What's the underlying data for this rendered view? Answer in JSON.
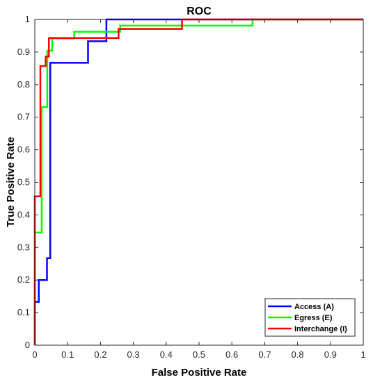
{
  "chart_data": {
    "type": "line",
    "title": "ROC",
    "xlabel": "False Positive Rate",
    "ylabel": "True Positive Rate",
    "xlim": [
      0,
      1
    ],
    "ylim": [
      0,
      1
    ],
    "xticks": [
      "0",
      "0.1",
      "0.2",
      "0.3",
      "0.4",
      "0.5",
      "0.6",
      "0.7",
      "0.8",
      "0.9",
      "1"
    ],
    "yticks": [
      "0",
      "0.1",
      "0.2",
      "0.3",
      "0.4",
      "0.5",
      "0.6",
      "0.7",
      "0.8",
      "0.9",
      "1"
    ],
    "grid": false,
    "legend_position": "bottom-right",
    "series": [
      {
        "name": "Access (A)",
        "color": "#0000ff",
        "points": [
          [
            0,
            0
          ],
          [
            0,
            0.133
          ],
          [
            0.012,
            0.133
          ],
          [
            0.012,
            0.2
          ],
          [
            0.037,
            0.2
          ],
          [
            0.037,
            0.267
          ],
          [
            0.047,
            0.267
          ],
          [
            0.047,
            0.867
          ],
          [
            0.162,
            0.867
          ],
          [
            0.162,
            0.933
          ],
          [
            0.218,
            0.933
          ],
          [
            0.218,
            1
          ],
          [
            1,
            1
          ]
        ]
      },
      {
        "name": "Egress (E)",
        "color": "#00ff00",
        "points": [
          [
            0,
            0
          ],
          [
            0,
            0.346
          ],
          [
            0.021,
            0.346
          ],
          [
            0.021,
            0.731
          ],
          [
            0.038,
            0.731
          ],
          [
            0.038,
            0.904
          ],
          [
            0.053,
            0.904
          ],
          [
            0.053,
            0.942
          ],
          [
            0.12,
            0.942
          ],
          [
            0.12,
            0.962
          ],
          [
            0.26,
            0.962
          ],
          [
            0.26,
            0.981
          ],
          [
            0.663,
            0.981
          ],
          [
            0.663,
            1
          ],
          [
            1,
            1
          ]
        ]
      },
      {
        "name": "Interchange (I)",
        "color": "#ff0000",
        "points": [
          [
            0,
            0
          ],
          [
            0,
            0.457
          ],
          [
            0.017,
            0.457
          ],
          [
            0.017,
            0.857
          ],
          [
            0.033,
            0.857
          ],
          [
            0.033,
            0.886
          ],
          [
            0.043,
            0.886
          ],
          [
            0.043,
            0.943
          ],
          [
            0.255,
            0.943
          ],
          [
            0.255,
            0.971
          ],
          [
            0.448,
            0.971
          ],
          [
            0.448,
            1
          ],
          [
            1,
            1
          ]
        ]
      }
    ]
  }
}
